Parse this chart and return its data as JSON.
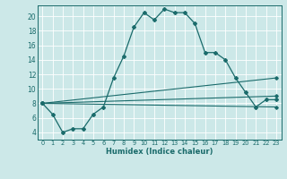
{
  "xlabel": "Humidex (Indice chaleur)",
  "background_color": "#cce8e8",
  "grid_color": "#ffffff",
  "line_color": "#1a6b6b",
  "xlim": [
    -0.5,
    23.5
  ],
  "ylim": [
    3.0,
    21.5
  ],
  "xticks": [
    0,
    1,
    2,
    3,
    4,
    5,
    6,
    7,
    8,
    9,
    10,
    11,
    12,
    13,
    14,
    15,
    16,
    17,
    18,
    19,
    20,
    21,
    22,
    23
  ],
  "yticks": [
    4,
    6,
    8,
    10,
    12,
    14,
    16,
    18,
    20
  ],
  "main_x": [
    0,
    1,
    2,
    3,
    4,
    5,
    6,
    7,
    8,
    9,
    10,
    11,
    12,
    13,
    14,
    15,
    16,
    17,
    18,
    19,
    20,
    21,
    22,
    23
  ],
  "main_y": [
    8,
    6.5,
    4,
    4.5,
    4.5,
    6.5,
    7.5,
    11.5,
    14.5,
    18.5,
    20.5,
    19.5,
    21,
    20.5,
    20.5,
    19,
    15,
    15,
    14,
    11.5,
    9.5,
    7.5,
    8.5,
    8.5
  ],
  "fan_lines": [
    {
      "x": [
        0,
        23
      ],
      "y": [
        8,
        11.5
      ]
    },
    {
      "x": [
        0,
        23
      ],
      "y": [
        8,
        9.0
      ]
    },
    {
      "x": [
        0,
        23
      ],
      "y": [
        8,
        7.5
      ]
    }
  ],
  "figsize": [
    3.2,
    2.0
  ],
  "dpi": 100
}
